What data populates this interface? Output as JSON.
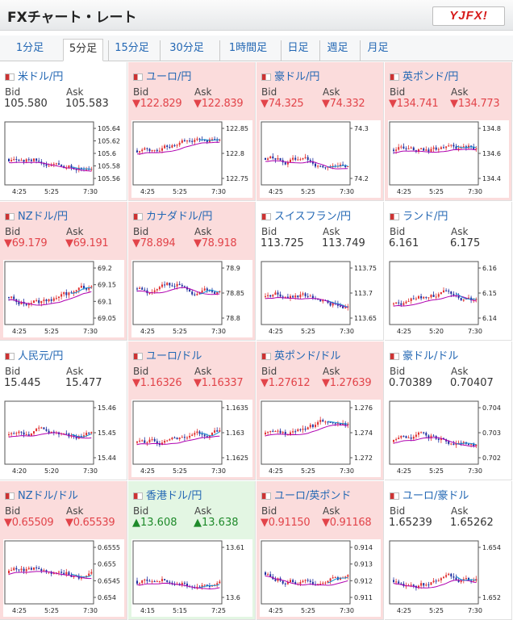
{
  "title": "FXチャート・レート",
  "logo": "YJFX!",
  "tabs": [
    "1分足",
    "5分足",
    "15分足",
    "30分足",
    "1時間足",
    "日足",
    "週足",
    "月足"
  ],
  "active_tab": 1,
  "bid_label": "Bid",
  "ask_label": "Ask",
  "colors": {
    "up": "#e03030",
    "down": "#2030a0",
    "ma": "#b000b0",
    "ma2": "#1890d0",
    "link": "#2468b4",
    "bid_down": "#e2444a",
    "bid_up": "#1e8a2a"
  },
  "cards": [
    {
      "pair": "米ドル/円",
      "bid": "105.580",
      "ask": "105.583",
      "dir": "",
      "bg": "w",
      "ticks": [
        "105.64",
        "105.62",
        "105.6",
        "105.58",
        "105.56"
      ],
      "xlabels": [
        "4:25",
        "5:25",
        "7:30"
      ]
    },
    {
      "pair": "ユーロ/円",
      "bid": "122.829",
      "ask": "122.839",
      "dir": "dn",
      "bg": "r",
      "ticks": [
        "122.85",
        "122.8",
        "122.75"
      ],
      "xlabels": [
        "4:25",
        "5:25",
        "7:30"
      ]
    },
    {
      "pair": "豪ドル/円",
      "bid": "74.325",
      "ask": "74.332",
      "dir": "dn",
      "bg": "r",
      "ticks": [
        "74.3",
        "74.2"
      ],
      "xlabels": [
        "4:25",
        "5:25",
        "7:30"
      ]
    },
    {
      "pair": "英ポンド/円",
      "bid": "134.741",
      "ask": "134.773",
      "dir": "dn",
      "bg": "r",
      "ticks": [
        "134.8",
        "134.6",
        "134.4"
      ],
      "xlabels": [
        "4:25",
        "5:25",
        "7:30"
      ]
    },
    {
      "pair": "NZドル/円",
      "bid": "69.179",
      "ask": "69.191",
      "dir": "dn",
      "bg": "r",
      "ticks": [
        "69.2",
        "69.15",
        "69.1",
        "69.05"
      ],
      "xlabels": [
        "4:25",
        "5:25",
        "7:30"
      ]
    },
    {
      "pair": "カナダドル/円",
      "bid": "78.894",
      "ask": "78.918",
      "dir": "dn",
      "bg": "r",
      "ticks": [
        "78.9",
        "78.85",
        "78.8"
      ],
      "xlabels": [
        "4:25",
        "5:25",
        "7:30"
      ]
    },
    {
      "pair": "スイスフラン/円",
      "bid": "113.725",
      "ask": "113.749",
      "dir": "",
      "bg": "w",
      "ticks": [
        "113.75",
        "113.7",
        "113.65"
      ],
      "xlabels": [
        "4:25",
        "5:25",
        "7:30"
      ]
    },
    {
      "pair": "ランド/円",
      "bid": "6.161",
      "ask": "6.175",
      "dir": "",
      "bg": "w",
      "ticks": [
        "6.16",
        "6.15",
        "6.14"
      ],
      "xlabels": [
        "4:25",
        "5:20",
        "7:30"
      ]
    },
    {
      "pair": "人民元/円",
      "bid": "15.445",
      "ask": "15.477",
      "dir": "",
      "bg": "w",
      "ticks": [
        "15.46",
        "15.45",
        "15.44"
      ],
      "xlabels": [
        "4:20",
        "5:20",
        "7:30"
      ]
    },
    {
      "pair": "ユーロ/ドル",
      "bid": "1.16326",
      "ask": "1.16337",
      "dir": "dn",
      "bg": "r",
      "ticks": [
        "1.1635",
        "1.163",
        "1.1625"
      ],
      "xlabels": [
        "4:25",
        "5:25",
        "7:30"
      ]
    },
    {
      "pair": "英ポンド/ドル",
      "bid": "1.27612",
      "ask": "1.27639",
      "dir": "dn",
      "bg": "r",
      "ticks": [
        "1.276",
        "1.274",
        "1.272"
      ],
      "xlabels": [
        "4:25",
        "5:25",
        "7:30"
      ]
    },
    {
      "pair": "豪ドル/ドル",
      "bid": "0.70389",
      "ask": "0.70407",
      "dir": "",
      "bg": "w",
      "ticks": [
        "0.704",
        "0.703",
        "0.702"
      ],
      "xlabels": [
        "4:25",
        "5:25",
        "7:30"
      ]
    },
    {
      "pair": "NZドル/ドル",
      "bid": "0.65509",
      "ask": "0.65539",
      "dir": "dn",
      "bg": "r",
      "ticks": [
        "0.6555",
        "0.655",
        "0.6545",
        "0.654"
      ],
      "xlabels": [
        "4:25",
        "5:25",
        "7:30"
      ]
    },
    {
      "pair": "香港ドル/円",
      "bid": "13.608",
      "ask": "13.638",
      "dir": "up",
      "bg": "g",
      "ticks": [
        "13.61",
        "13.6"
      ],
      "xlabels": [
        "4:15",
        "5:15",
        "7:25"
      ]
    },
    {
      "pair": "ユーロ/英ポンド",
      "bid": "0.91150",
      "ask": "0.91168",
      "dir": "dn",
      "bg": "r",
      "ticks": [
        "0.914",
        "0.913",
        "0.912",
        "0.911"
      ],
      "xlabels": [
        "4:25",
        "5:25",
        "7:30"
      ]
    },
    {
      "pair": "ユーロ/豪ドル",
      "bid": "1.65239",
      "ask": "1.65262",
      "dir": "",
      "bg": "w",
      "ticks": [
        "1.654",
        "1.652"
      ],
      "xlabels": [
        "4:25",
        "5:25",
        "7:30"
      ]
    }
  ]
}
